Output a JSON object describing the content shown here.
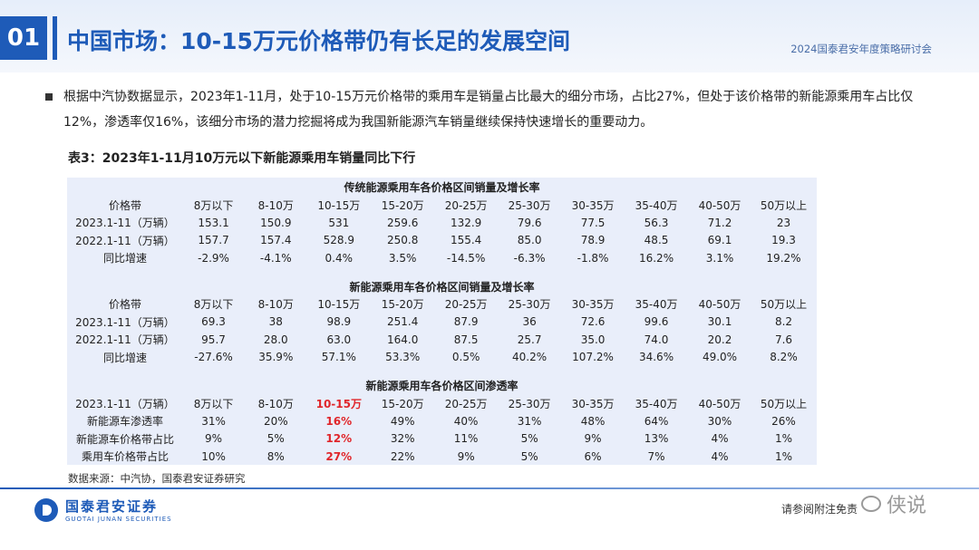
{
  "header": {
    "section_number": "01",
    "title": "中国市场：10-15万元价格带仍有长足的发展空间",
    "conference": "2024国泰君安年度策略研讨会"
  },
  "bullet": "根据中汽协数据显示，2023年1-11月，处于10-15万元价格带的乘用车是销量占比最大的细分市场，占比27%，但处于该价格带的新能源乘用车占比仅12%，渗透率仅16%，该细分市场的潜力挖掘将成为我国新能源汽车销量继续保持快速增长的重要动力。",
  "table_title": "表3：2023年1-11月10万元以下新能源乘用车销量同比下行",
  "table": {
    "sections": [
      {
        "title": "传统能源乘用车各价格区间销量及增长率",
        "rows": [
          [
            "价格带",
            "8万以下",
            "8-10万",
            "10-15万",
            "15-20万",
            "20-25万",
            "25-30万",
            "30-35万",
            "35-40万",
            "40-50万",
            "50万以上"
          ],
          [
            "2023.1-11（万辆）",
            "153.1",
            "150.9",
            "531",
            "259.6",
            "132.9",
            "79.6",
            "77.5",
            "56.3",
            "71.2",
            "23"
          ],
          [
            "2022.1-11（万辆）",
            "157.7",
            "157.4",
            "528.9",
            "250.8",
            "155.4",
            "85.0",
            "78.9",
            "48.5",
            "69.1",
            "19.3"
          ],
          [
            "同比增速",
            "-2.9%",
            "-4.1%",
            "0.4%",
            "3.5%",
            "-14.5%",
            "-6.3%",
            "-1.8%",
            "16.2%",
            "3.1%",
            "19.2%"
          ]
        ]
      },
      {
        "title": "新能源乘用车各价格区间销量及增长率",
        "rows": [
          [
            "价格带",
            "8万以下",
            "8-10万",
            "10-15万",
            "15-20万",
            "20-25万",
            "25-30万",
            "30-35万",
            "35-40万",
            "40-50万",
            "50万以上"
          ],
          [
            "2023.1-11（万辆）",
            "69.3",
            "38",
            "98.9",
            "251.4",
            "87.9",
            "36",
            "72.6",
            "99.6",
            "30.1",
            "8.2"
          ],
          [
            "2022.1-11（万辆）",
            "95.7",
            "28.0",
            "63.0",
            "164.0",
            "87.5",
            "25.7",
            "35.0",
            "74.0",
            "20.2",
            "7.6"
          ],
          [
            "同比增速",
            "-27.6%",
            "35.9%",
            "57.1%",
            "53.3%",
            "0.5%",
            "40.2%",
            "107.2%",
            "34.6%",
            "49.0%",
            "8.2%"
          ]
        ]
      },
      {
        "title": "新能源乘用车各价格区间渗透率",
        "rows": [
          [
            "2023.1-11（万辆）",
            "8万以下",
            "8-10万",
            "10-15万",
            "15-20万",
            "20-25万",
            "25-30万",
            "30-35万",
            "35-40万",
            "40-50万",
            "50万以上"
          ],
          [
            "新能源车渗透率",
            "31%",
            "20%",
            "16%",
            "49%",
            "40%",
            "31%",
            "48%",
            "64%",
            "30%",
            "26%"
          ],
          [
            "新能源车价格带占比",
            "9%",
            "5%",
            "12%",
            "32%",
            "11%",
            "5%",
            "9%",
            "13%",
            "4%",
            "1%"
          ],
          [
            "乘用车价格带占比",
            "10%",
            "8%",
            "27%",
            "22%",
            "9%",
            "5%",
            "6%",
            "7%",
            "4%",
            "1%"
          ]
        ]
      }
    ],
    "highlight_color": "#e0262b"
  },
  "source": "数据来源：中汽协，国泰君安证券研究",
  "footer": {
    "logo_cn": "国泰君安证券",
    "logo_en": "GUOTAI JUNAN SECURITIES",
    "disclaimer": "请参阅附注免责",
    "watermark": "侠说"
  },
  "colors": {
    "brand": "#1e5bb8",
    "table_bg": "#e9eefa",
    "highlight": "#e0262b"
  }
}
